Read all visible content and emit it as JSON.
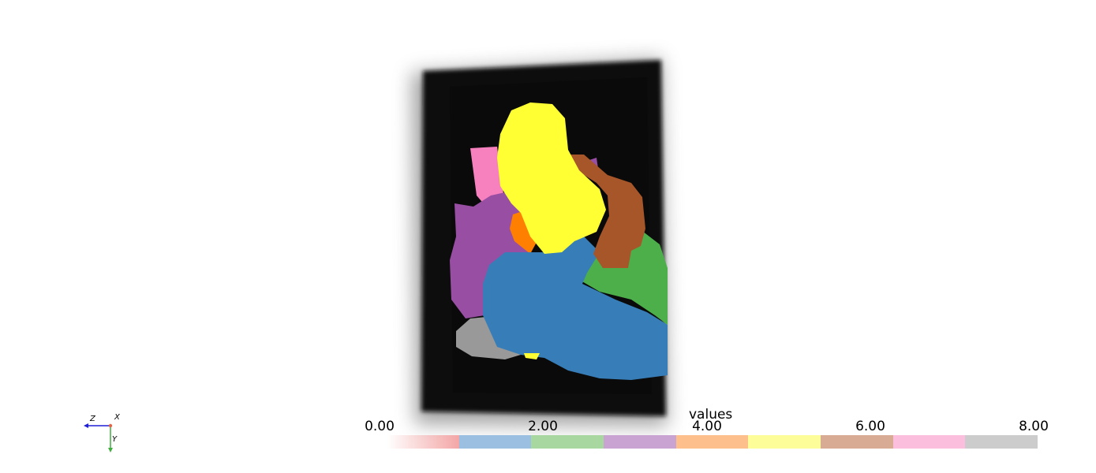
{
  "scene": {
    "labels": [
      {
        "value": 1,
        "color": "#377eb8",
        "name": "blue"
      },
      {
        "value": 2,
        "color": "#4daf4a",
        "name": "green"
      },
      {
        "value": 3,
        "color": "#984ea3",
        "name": "purple"
      },
      {
        "value": 4,
        "color": "#ff7f00",
        "name": "orange"
      },
      {
        "value": 5,
        "color": "#ffff33",
        "name": "yellow"
      },
      {
        "value": 6,
        "color": "#a65628",
        "name": "brown"
      },
      {
        "value": 7,
        "color": "#f781bf",
        "name": "pink"
      },
      {
        "value": 8,
        "color": "#999999",
        "name": "gray"
      }
    ]
  },
  "axes": {
    "x_label": "X",
    "y_label": "Y",
    "z_label": "Z"
  },
  "scalar_bar": {
    "title": "values",
    "ticks": [
      "0.00",
      "2.00",
      "4.00",
      "6.00",
      "8.00"
    ],
    "colors": [
      "#f4a6a6",
      "#9bbfe0",
      "#a8d8a0",
      "#c9a4d3",
      "#fdc08c",
      "#fdfd99",
      "#d7ab94",
      "#fbbfdd",
      "#cccccc"
    ]
  }
}
